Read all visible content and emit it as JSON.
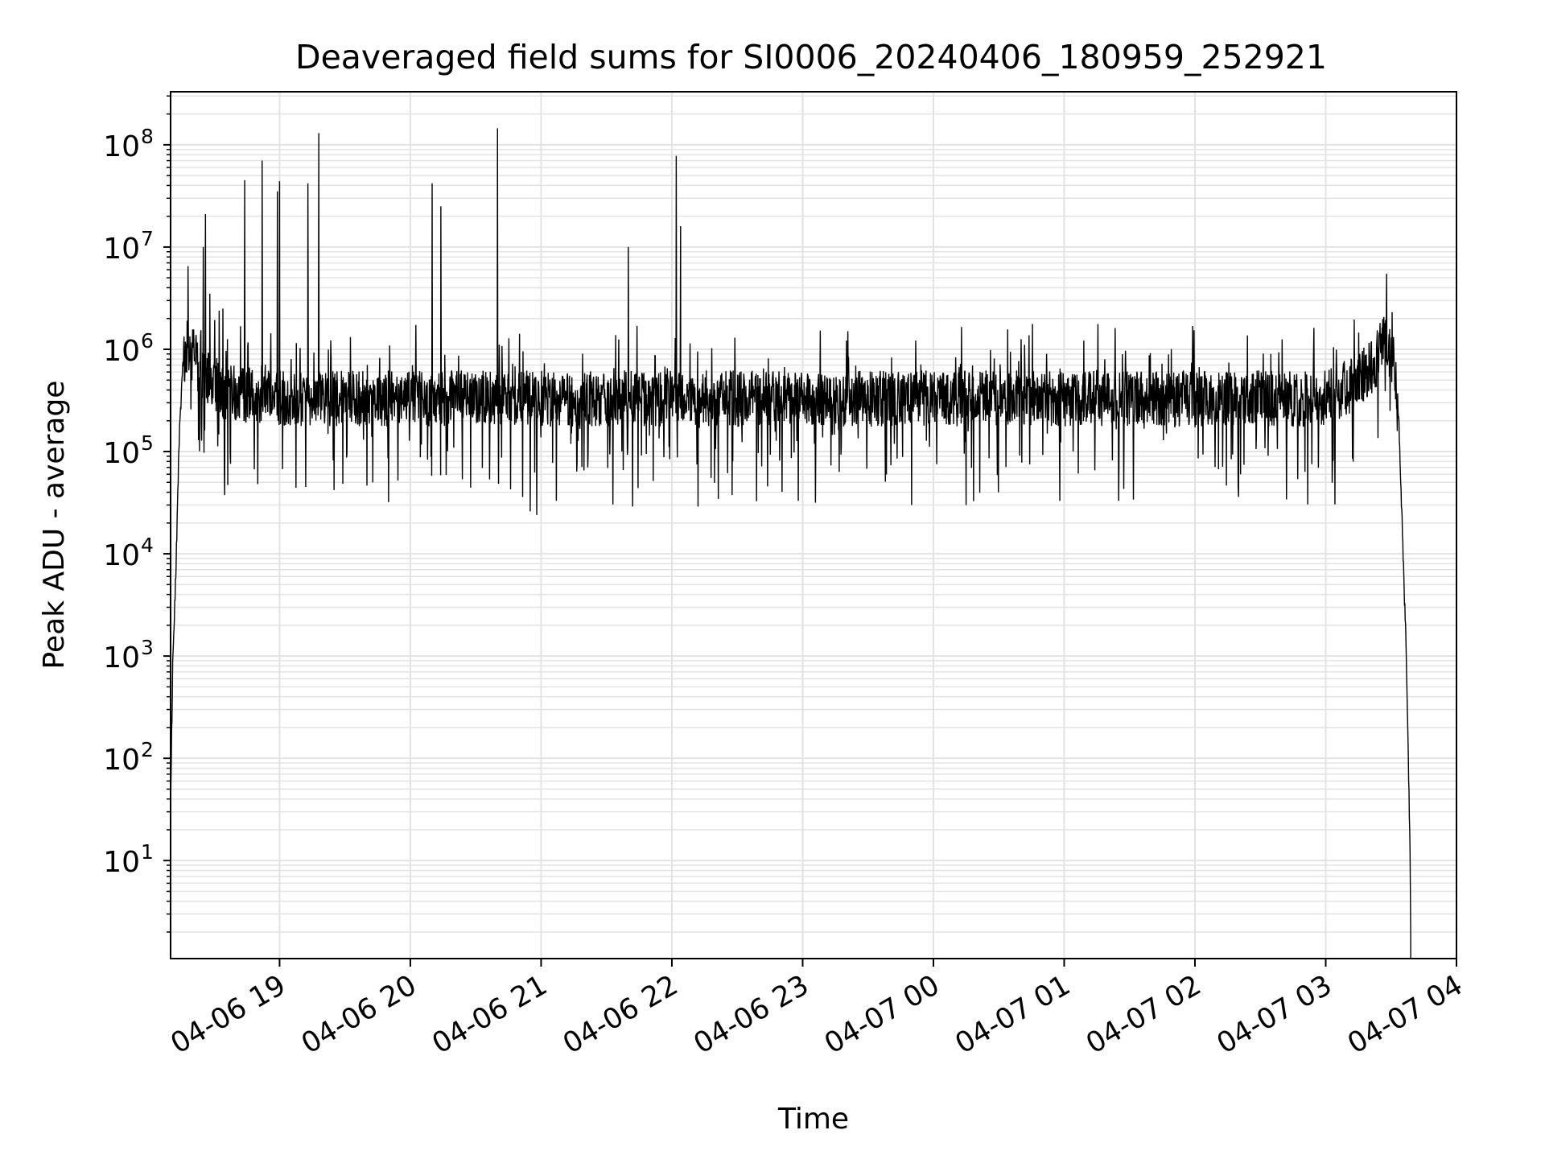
{
  "figure": {
    "title": "Deaveraged field sums for SI0006_20240406_180959_252921"
  },
  "chart_data": {
    "type": "line",
    "title": "Deaveraged field sums for SI0006_20240406_180959_252921",
    "xlabel": "Time",
    "ylabel": "Peak ADU - average",
    "x_scale": "time",
    "y_scale": "log",
    "xlim": [
      "2024-04-06 18:10:00",
      "2024-04-07 04:00:00"
    ],
    "ylim": [
      1.1,
      330000000
    ],
    "grid": "both (major and minor)",
    "legend": "none",
    "line_color": "#000000",
    "grid_color": "#e3e3e3",
    "xticks": [
      {
        "value": "2024-04-06 19:00",
        "label": "04-06 19"
      },
      {
        "value": "2024-04-06 20:00",
        "label": "04-06 20"
      },
      {
        "value": "2024-04-06 21:00",
        "label": "04-06 21"
      },
      {
        "value": "2024-04-06 22:00",
        "label": "04-06 22"
      },
      {
        "value": "2024-04-06 23:00",
        "label": "04-06 23"
      },
      {
        "value": "2024-04-07 00:00",
        "label": "04-07 00"
      },
      {
        "value": "2024-04-07 01:00",
        "label": "04-07 01"
      },
      {
        "value": "2024-04-07 02:00",
        "label": "04-07 02"
      },
      {
        "value": "2024-04-07 03:00",
        "label": "04-07 03"
      },
      {
        "value": "2024-04-07 04:00",
        "label": "04-07 04"
      }
    ],
    "yticks": [
      {
        "exp": 1,
        "base": "10",
        "sup": "1"
      },
      {
        "exp": 2,
        "base": "10",
        "sup": "2"
      },
      {
        "exp": 3,
        "base": "10",
        "sup": "3"
      },
      {
        "exp": 4,
        "base": "10",
        "sup": "4"
      },
      {
        "exp": 5,
        "base": "10",
        "sup": "5"
      },
      {
        "exp": 6,
        "base": "10",
        "sup": "6"
      },
      {
        "exp": 7,
        "base": "10",
        "sup": "7"
      },
      {
        "exp": 8,
        "base": "10",
        "sup": "8"
      }
    ],
    "baseline": {
      "description": "dense noisy trace; approximate median level per time anchor",
      "points": [
        [
          "2024-04-06 18:10:00",
          35
        ],
        [
          "2024-04-06 18:11:00",
          900
        ],
        [
          "2024-04-06 18:12:30",
          8000
        ],
        [
          "2024-04-06 18:14:00",
          150000
        ],
        [
          "2024-04-06 18:15:30",
          600000
        ],
        [
          "2024-04-06 18:17:00",
          1100000
        ],
        [
          "2024-04-06 18:20:00",
          900000
        ],
        [
          "2024-04-06 18:25:00",
          550000
        ],
        [
          "2024-04-06 18:35:00",
          380000
        ],
        [
          "2024-04-06 19:00:00",
          330000
        ],
        [
          "2024-04-07 03:00:00",
          330000
        ],
        [
          "2024-04-07 03:12:00",
          450000
        ],
        [
          "2024-04-07 03:22:00",
          700000
        ],
        [
          "2024-04-07 03:27:00",
          1200000
        ],
        [
          "2024-04-07 03:31:00",
          800000
        ],
        [
          "2024-04-07 03:33:30",
          200000
        ],
        [
          "2024-04-07 03:35:30",
          10000
        ],
        [
          "2024-04-07 03:37:00",
          1000
        ],
        [
          "2024-04-07 03:38:00",
          80
        ],
        [
          "2024-04-07 03:38:40",
          12
        ],
        [
          "2024-04-07 03:39:00",
          2
        ]
      ]
    },
    "spikes": [
      {
        "x": "2024-04-06 18:18:00",
        "y": 6500000
      },
      {
        "x": "2024-04-06 18:25:00",
        "y": 10000000
      },
      {
        "x": "2024-04-06 18:26:00",
        "y": 21000000
      },
      {
        "x": "2024-04-06 18:28:00",
        "y": 3500000
      },
      {
        "x": "2024-04-06 18:34:00",
        "y": 2500000
      },
      {
        "x": "2024-04-06 18:44:00",
        "y": 45000000
      },
      {
        "x": "2024-04-06 18:52:00",
        "y": 70000000
      },
      {
        "x": "2024-04-06 18:59:00",
        "y": 35000000
      },
      {
        "x": "2024-04-06 19:00:00",
        "y": 44000000
      },
      {
        "x": "2024-04-06 19:13:00",
        "y": 42000000
      },
      {
        "x": "2024-04-06 19:18:00",
        "y": 130000000
      },
      {
        "x": "2024-04-06 20:10:00",
        "y": 42000000
      },
      {
        "x": "2024-04-06 20:14:00",
        "y": 25000000
      },
      {
        "x": "2024-04-06 20:40:00",
        "y": 145000000
      },
      {
        "x": "2024-04-06 21:40:00",
        "y": 10000000
      },
      {
        "x": "2024-04-06 22:02:00",
        "y": 78000000
      },
      {
        "x": "2024-04-06 22:04:00",
        "y": 16000000
      },
      {
        "x": "2024-04-06 23:50:00",
        "y": 1700000
      },
      {
        "x": "2024-04-07 02:40:00",
        "y": 1250000
      }
    ],
    "dips": [
      {
        "x": "2024-04-06 18:50:00",
        "y": 48000
      },
      {
        "x": "2024-04-06 19:12:00",
        "y": 45000
      },
      {
        "x": "2024-04-06 19:25:00",
        "y": 42000
      },
      {
        "x": "2024-04-06 19:50:00",
        "y": 32000
      },
      {
        "x": "2024-04-06 20:55:00",
        "y": 26000
      },
      {
        "x": "2024-04-06 20:58:00",
        "y": 24000
      },
      {
        "x": "2024-04-06 21:07:00",
        "y": 33000
      },
      {
        "x": "2024-04-06 21:42:00",
        "y": 29000
      },
      {
        "x": "2024-04-06 22:12:00",
        "y": 29000
      },
      {
        "x": "2024-04-06 22:58:00",
        "y": 33000
      },
      {
        "x": "2024-04-06 23:50:00",
        "y": 30000
      },
      {
        "x": "2024-04-07 00:15:00",
        "y": 30000
      },
      {
        "x": "2024-04-07 00:58:00",
        "y": 33000
      },
      {
        "x": "2024-04-07 01:25:00",
        "y": 33000
      },
      {
        "x": "2024-04-07 02:20:00",
        "y": 36000
      },
      {
        "x": "2024-04-07 02:42:00",
        "y": 34000
      }
    ]
  }
}
